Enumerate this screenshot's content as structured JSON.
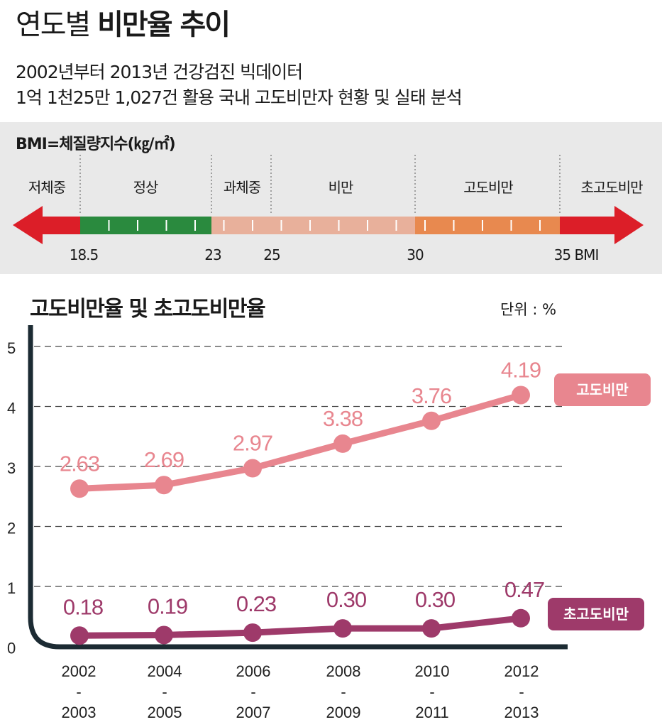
{
  "header": {
    "title_regular": "연도별",
    "title_bold": "비만율 추이",
    "subtitle_lines": [
      "2002년부터 2013년 건강검진 빅데이터",
      "1억 1천25만 1,027건 활용 국내 고도비만자 현황 및 실태 분석"
    ]
  },
  "bmi_scale": {
    "title": "BMI=체질량지수(㎏/㎡)",
    "categories": [
      "저체중",
      "정상",
      "과체중",
      "비만",
      "고도비만",
      "초고도비만"
    ],
    "thresholds": [
      "18.5",
      "23",
      "25",
      "30",
      "35 BMI"
    ],
    "colors": {
      "underweight": "#dc1e28",
      "normal": "#2a8a3e",
      "overweight": "#e8b09b",
      "obese": "#e8b09b",
      "severe": "#e8894f",
      "extreme": "#dc1e28"
    }
  },
  "chart_data": {
    "type": "line",
    "title": "고도비만율 및 초고도비만율",
    "unit": "단위 : %",
    "categories": [
      [
        "2002",
        "-",
        "2003"
      ],
      [
        "2004",
        "-",
        "2005"
      ],
      [
        "2006",
        "-",
        "2007"
      ],
      [
        "2008",
        "-",
        "2009"
      ],
      [
        "2010",
        "-",
        "2011"
      ],
      [
        "2012",
        "-",
        "2013"
      ]
    ],
    "ylim": [
      0,
      5
    ],
    "yticks": [
      "0",
      "1",
      "2",
      "3",
      "4",
      "5"
    ],
    "grid": true,
    "legend_placement": "right",
    "series": [
      {
        "name": "고도비만",
        "color": "#e8868f",
        "values": [
          2.63,
          2.69,
          2.97,
          3.38,
          3.76,
          4.19
        ],
        "labels": [
          "2.63",
          "2.69",
          "2.97",
          "3.38",
          "3.76",
          "4.19"
        ]
      },
      {
        "name": "초고도비만",
        "color": "#9e3a6a",
        "values": [
          0.18,
          0.19,
          0.23,
          0.3,
          0.3,
          0.47
        ],
        "labels": [
          "0.18",
          "0.19",
          "0.23",
          "0.30",
          "0.30",
          "0.47"
        ]
      }
    ]
  }
}
